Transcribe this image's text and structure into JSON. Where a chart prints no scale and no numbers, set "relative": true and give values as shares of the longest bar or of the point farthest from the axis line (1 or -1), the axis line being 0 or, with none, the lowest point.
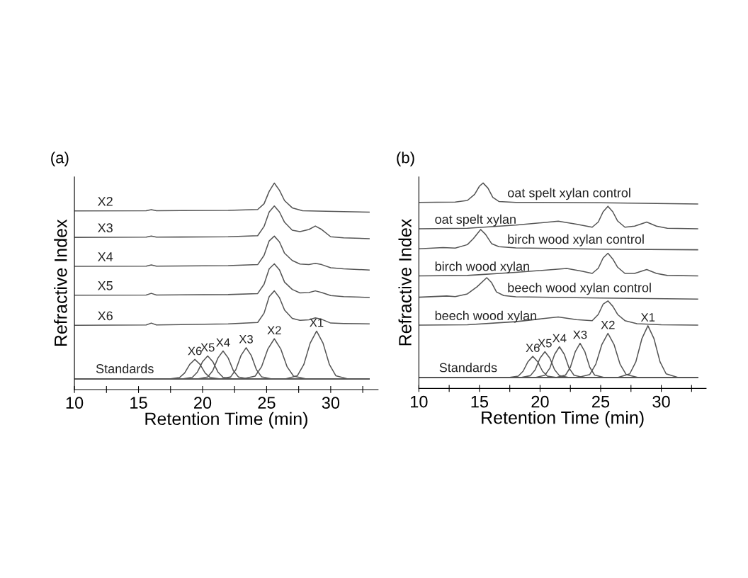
{
  "chart_data": [
    {
      "type": "line",
      "title": "(a)",
      "xlabel": "Retention Time (min)",
      "ylabel": "Refractive Index",
      "relative": true,
      "xlim": [
        10,
        33.7
      ],
      "xticks": [
        10,
        {
          "value": 12.5,
          "label": null
        },
        15,
        {
          "value": 17.5,
          "label": null
        },
        20,
        {
          "value": 22.5,
          "label": null
        },
        25,
        {
          "value": 27.5,
          "label": null
        },
        30,
        {
          "value": 32.5,
          "label": null
        }
      ],
      "tick_labels": "x",
      "grid": false,
      "legend": false,
      "series": [
        {
          "name": "X2",
          "color": "#555555",
          "x": [
            10,
            15.6,
            16,
            16.4,
            22,
            24.3,
            24.8,
            25.2,
            25.6,
            26,
            26.4,
            27,
            27.8,
            29,
            31,
            33
          ],
          "values": [
            0.865,
            0.866,
            0.871,
            0.866,
            0.868,
            0.872,
            0.9,
            0.96,
            1.0,
            0.965,
            0.915,
            0.88,
            0.866,
            0.864,
            0.862,
            0.859
          ]
        },
        {
          "name": "X3",
          "color": "#555555",
          "x": [
            10,
            15.6,
            16,
            16.4,
            22,
            24.3,
            24.8,
            25.2,
            25.6,
            26,
            26.4,
            27,
            27.6,
            28.3,
            28.8,
            29.3,
            30,
            31,
            33
          ],
          "values": [
            0.737,
            0.738,
            0.743,
            0.738,
            0.74,
            0.745,
            0.79,
            0.86,
            0.889,
            0.86,
            0.81,
            0.772,
            0.765,
            0.775,
            0.792,
            0.775,
            0.74,
            0.735,
            0.731
          ]
        },
        {
          "name": "X4",
          "color": "#555555",
          "x": [
            10,
            15.6,
            16,
            16.4,
            22,
            24.3,
            24.8,
            25.2,
            25.6,
            26,
            26.4,
            27,
            27.6,
            28.3,
            28.8,
            29.3,
            30,
            31,
            33
          ],
          "values": [
            0.597,
            0.598,
            0.604,
            0.598,
            0.6,
            0.605,
            0.65,
            0.72,
            0.743,
            0.715,
            0.66,
            0.625,
            0.608,
            0.605,
            0.611,
            0.605,
            0.59,
            0.585,
            0.579
          ]
        },
        {
          "name": "X5",
          "color": "#555555",
          "x": [
            10,
            15.6,
            16,
            16.4,
            22,
            24.3,
            24.8,
            25.2,
            25.6,
            26,
            26.4,
            27,
            27.6,
            28.3,
            28.8,
            29.3,
            30,
            31,
            33
          ],
          "values": [
            0.457,
            0.458,
            0.466,
            0.458,
            0.46,
            0.465,
            0.51,
            0.585,
            0.609,
            0.58,
            0.52,
            0.485,
            0.468,
            0.47,
            0.478,
            0.47,
            0.455,
            0.45,
            0.446
          ]
        },
        {
          "name": "X6",
          "color": "#555555",
          "x": [
            10,
            15.6,
            16,
            16.4,
            22,
            24.3,
            24.8,
            25.2,
            25.6,
            26,
            26.4,
            27,
            27.6,
            28.3,
            28.8,
            29.3,
            30,
            31,
            33
          ],
          "values": [
            0.311,
            0.313,
            0.322,
            0.313,
            0.318,
            0.325,
            0.37,
            0.45,
            0.478,
            0.445,
            0.385,
            0.345,
            0.335,
            0.338,
            0.347,
            0.34,
            0.322,
            0.32,
            0.318
          ]
        },
        {
          "color": "#555555",
          "x": [
            10,
            17.4,
            18.2,
            18.6,
            19.0,
            19.4,
            19.8,
            20.2,
            20.6,
            21.4,
            33
          ],
          "values": [
            0.051,
            0.051,
            0.058,
            0.08,
            0.122,
            0.146,
            0.122,
            0.08,
            0.058,
            0.051,
            0.051
          ]
        },
        {
          "color": "#555555",
          "x": [
            10,
            18.4,
            19.2,
            19.6,
            20.0,
            20.4,
            20.8,
            21.2,
            21.6,
            22.4,
            33
          ],
          "values": [
            0.051,
            0.051,
            0.059,
            0.085,
            0.135,
            0.163,
            0.135,
            0.085,
            0.059,
            0.051,
            0.051
          ]
        },
        {
          "color": "#555555",
          "x": [
            10,
            19.6,
            20.4,
            20.8,
            21.2,
            21.6,
            22.0,
            22.4,
            22.8,
            23.6,
            33
          ],
          "values": [
            0.051,
            0.051,
            0.061,
            0.092,
            0.153,
            0.187,
            0.153,
            0.092,
            0.061,
            0.051,
            0.051
          ]
        },
        {
          "color": "#555555",
          "x": [
            10,
            21.4,
            22.2,
            22.6,
            23.0,
            23.4,
            23.8,
            24.2,
            24.6,
            25.4,
            33
          ],
          "values": [
            0.051,
            0.051,
            0.062,
            0.097,
            0.165,
            0.203,
            0.165,
            0.097,
            0.062,
            0.051,
            0.051
          ]
        },
        {
          "color": "#555555",
          "x": [
            10,
            23.1,
            24.1,
            24.6,
            25.1,
            25.6,
            26.1,
            26.6,
            27.1,
            28.1,
            33
          ],
          "values": [
            0.051,
            0.051,
            0.065,
            0.11,
            0.197,
            0.246,
            0.197,
            0.11,
            0.065,
            0.051,
            0.051
          ]
        },
        {
          "color": "#555555",
          "x": [
            10,
            26.4,
            27.4,
            27.9,
            28.4,
            28.9,
            29.4,
            29.9,
            30.4,
            31.4,
            33
          ],
          "values": [
            0.051,
            0.051,
            0.067,
            0.121,
            0.225,
            0.283,
            0.225,
            0.121,
            0.067,
            0.051,
            0.051
          ]
        }
      ],
      "annotations": [
        "Standards",
        {
          "text": "X6",
          "x": 19.4,
          "y": 0.146
        },
        {
          "text": "X5",
          "x": 20.4,
          "y": 0.163
        },
        {
          "text": "X4",
          "x": 21.6,
          "y": 0.187
        },
        {
          "text": "X3",
          "x": 23.4,
          "y": 0.203
        },
        {
          "text": "X2",
          "x": 25.6,
          "y": 0.246
        },
        {
          "text": "X1",
          "x": 28.9,
          "y": 0.283
        }
      ]
    },
    {
      "type": "line",
      "title": "(b)",
      "xlabel": "Retention Time (min)",
      "ylabel": "Refractive Index",
      "relative": true,
      "xlim": [
        10,
        33.7
      ],
      "xticks": [
        10,
        {
          "value": 12.5,
          "label": null
        },
        15,
        {
          "value": 17.5,
          "label": null
        },
        20,
        {
          "value": 22.5,
          "label": null
        },
        25,
        {
          "value": 27.5,
          "label": null
        },
        30,
        {
          "value": 32.5,
          "label": null
        }
      ],
      "tick_labels": "x",
      "grid": false,
      "legend": false,
      "series": [
        {
          "name": "oat spelt xylan control",
          "color": "#555555",
          "x": [
            10,
            13,
            14,
            14.6,
            15,
            15.3,
            15.7,
            16.1,
            16.6,
            18,
            25,
            33
          ],
          "values": [
            0.906,
            0.907,
            0.915,
            0.945,
            0.985,
            1.0,
            0.975,
            0.93,
            0.91,
            0.906,
            0.904,
            0.898
          ]
        },
        {
          "name": "oat spelt xylan",
          "color": "#555555",
          "x": [
            10,
            14,
            18,
            21.5,
            23,
            24.3,
            24.8,
            25.2,
            25.6,
            26,
            26.4,
            27,
            27.8,
            28.8,
            29.6,
            30.5,
            33
          ],
          "values": [
            0.777,
            0.78,
            0.795,
            0.814,
            0.8,
            0.785,
            0.81,
            0.86,
            0.887,
            0.86,
            0.815,
            0.785,
            0.79,
            0.81,
            0.79,
            0.78,
            0.777
          ]
        },
        {
          "name": "birch wood xylan control",
          "color": "#555555",
          "x": [
            10,
            12,
            13,
            14,
            14.5,
            15.1,
            15.5,
            16,
            16.6,
            18,
            25,
            33
          ],
          "values": [
            0.68,
            0.686,
            0.683,
            0.7,
            0.73,
            0.774,
            0.75,
            0.705,
            0.69,
            0.684,
            0.678,
            0.675
          ]
        },
        {
          "name": "birch wood xylan",
          "color": "#555555",
          "x": [
            10,
            14,
            18,
            22.2,
            23.5,
            24.3,
            24.8,
            25.2,
            25.6,
            26,
            26.4,
            27,
            27.8,
            28.8,
            29.6,
            30.5,
            33
          ],
          "values": [
            0.548,
            0.55,
            0.565,
            0.584,
            0.57,
            0.56,
            0.585,
            0.635,
            0.658,
            0.63,
            0.59,
            0.56,
            0.56,
            0.579,
            0.56,
            0.55,
            0.548
          ]
        },
        {
          "name": "beech wood xylan control",
          "color": "#555555",
          "x": [
            10,
            12.3,
            13,
            14,
            14.8,
            15.6,
            16,
            16.4,
            17,
            18,
            25,
            33
          ],
          "values": [
            0.444,
            0.45,
            0.447,
            0.46,
            0.495,
            0.539,
            0.515,
            0.47,
            0.452,
            0.446,
            0.44,
            0.435
          ]
        },
        {
          "name": "beech wood xylan",
          "color": "#555555",
          "x": [
            10,
            14,
            18,
            21.5,
            23,
            24.3,
            24.8,
            25.2,
            25.6,
            26,
            26.4,
            27,
            28,
            30,
            33
          ],
          "values": [
            0.308,
            0.31,
            0.325,
            0.348,
            0.335,
            0.33,
            0.36,
            0.41,
            0.426,
            0.4,
            0.36,
            0.33,
            0.315,
            0.31,
            0.308
          ]
        },
        {
          "color": "#555555",
          "x": [
            10,
            17.4,
            18.2,
            18.6,
            19.0,
            19.4,
            19.8,
            20.2,
            20.6,
            21.4,
            33
          ],
          "values": [
            0.053,
            0.053,
            0.06,
            0.084,
            0.13,
            0.156,
            0.13,
            0.084,
            0.06,
            0.053,
            0.053
          ]
        },
        {
          "color": "#555555",
          "x": [
            10,
            18.4,
            19.2,
            19.6,
            20.0,
            20.4,
            20.8,
            21.2,
            21.6,
            22.4,
            33
          ],
          "values": [
            0.053,
            0.053,
            0.062,
            0.091,
            0.148,
            0.179,
            0.148,
            0.091,
            0.062,
            0.053,
            0.053
          ]
        },
        {
          "color": "#555555",
          "x": [
            10,
            19.6,
            20.4,
            20.8,
            21.2,
            21.6,
            22.0,
            22.4,
            22.8,
            23.6,
            33
          ],
          "values": [
            0.053,
            0.053,
            0.064,
            0.098,
            0.166,
            0.203,
            0.166,
            0.098,
            0.064,
            0.053,
            0.053
          ]
        },
        {
          "color": "#555555",
          "x": [
            10,
            21.3,
            22.1,
            22.5,
            22.9,
            23.3,
            23.7,
            24.1,
            24.5,
            25.3,
            33
          ],
          "values": [
            0.053,
            0.053,
            0.065,
            0.103,
            0.178,
            0.22,
            0.178,
            0.103,
            0.065,
            0.053,
            0.053
          ]
        },
        {
          "color": "#555555",
          "x": [
            10,
            23.1,
            24.1,
            24.6,
            25.1,
            25.6,
            26.1,
            26.6,
            27.1,
            28.1,
            33
          ],
          "values": [
            0.053,
            0.053,
            0.068,
            0.118,
            0.214,
            0.268,
            0.214,
            0.118,
            0.068,
            0.053,
            0.053
          ]
        },
        {
          "color": "#555555",
          "x": [
            10,
            26.4,
            27.4,
            27.9,
            28.4,
            28.9,
            29.4,
            29.9,
            30.4,
            31.4,
            33
          ],
          "values": [
            0.053,
            0.053,
            0.071,
            0.129,
            0.242,
            0.305,
            0.242,
            0.129,
            0.071,
            0.053,
            0.053
          ]
        }
      ],
      "annotations": [
        "Standards",
        {
          "text": "X6",
          "x": 19.4,
          "y": 0.156
        },
        {
          "text": "X5",
          "x": 20.4,
          "y": 0.179
        },
        {
          "text": "X4",
          "x": 21.6,
          "y": 0.203
        },
        {
          "text": "X3",
          "x": 23.3,
          "y": 0.22
        },
        {
          "text": "X2",
          "x": 25.6,
          "y": 0.268
        },
        {
          "text": "X1",
          "x": 28.9,
          "y": 0.305
        }
      ]
    }
  ]
}
